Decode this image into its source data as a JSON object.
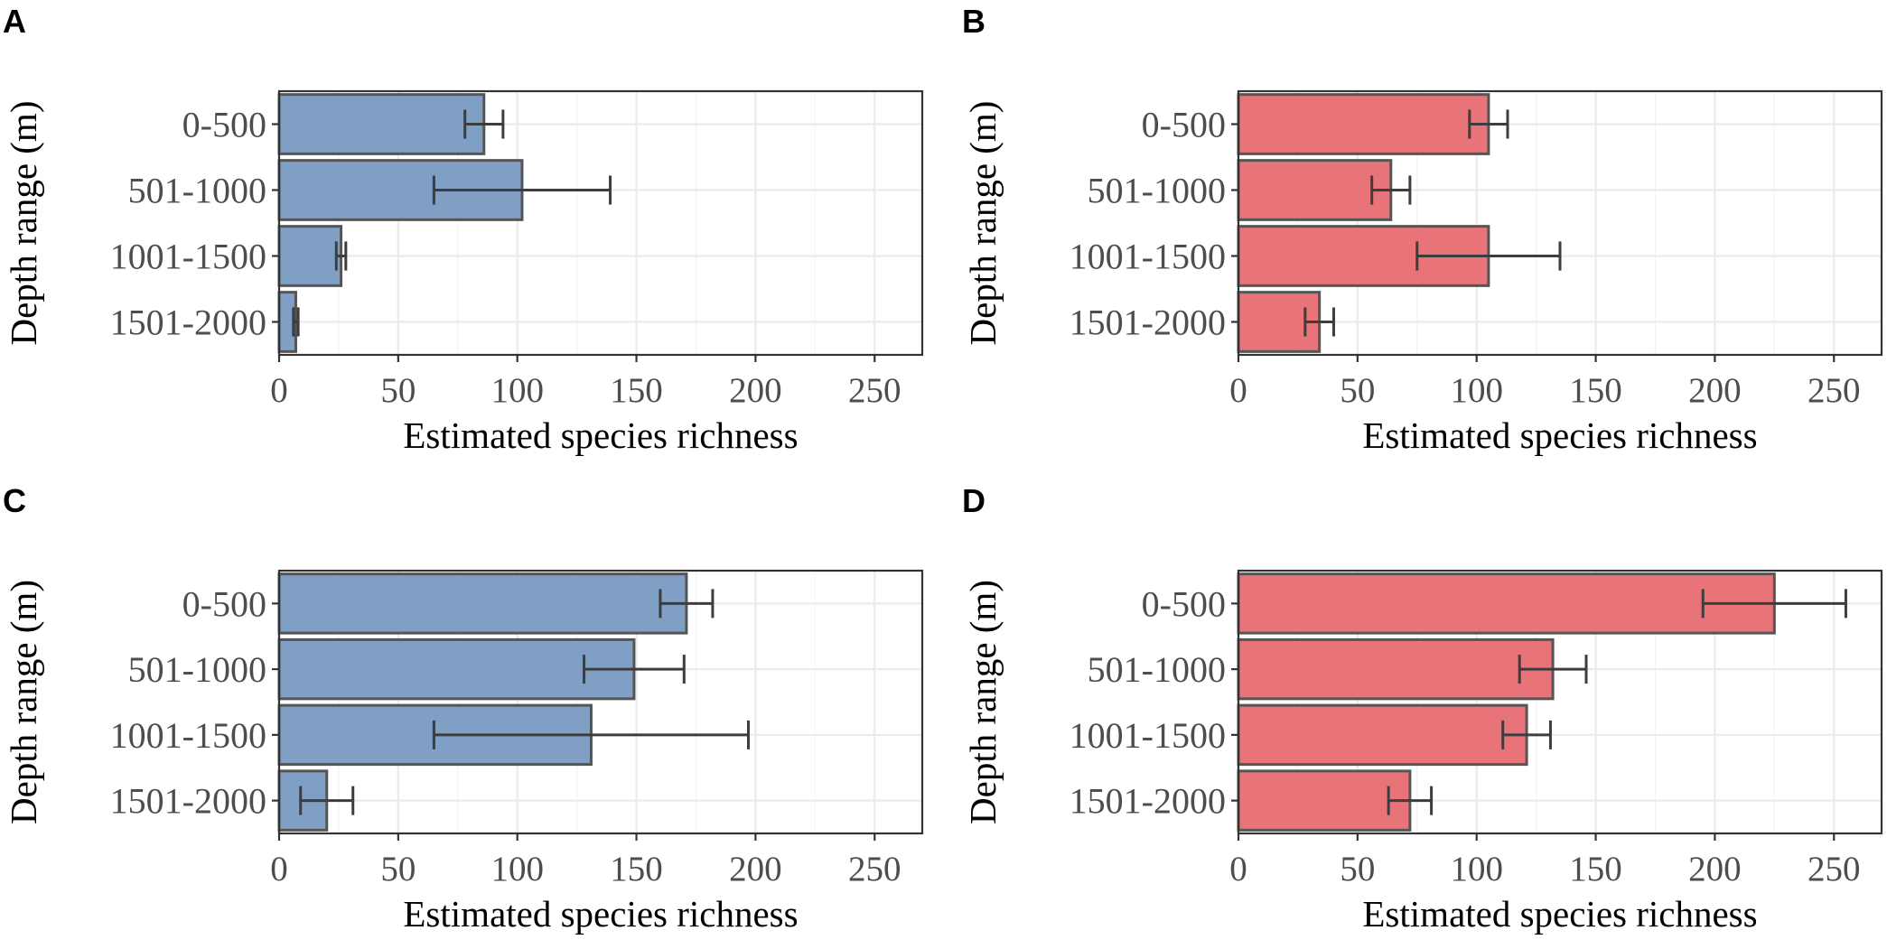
{
  "colors": {
    "blue": "#7f9fc4",
    "red": "#e87479"
  },
  "chart_data": [
    {
      "type": "bar",
      "orientation": "horizontal",
      "panel": "A",
      "categories": [
        "0-500",
        "501-1000",
        "1001-1500",
        "1501-2000"
      ],
      "values": [
        86,
        102,
        26,
        7
      ],
      "error_low": [
        78,
        65,
        24,
        6
      ],
      "error_high": [
        94,
        139,
        28,
        8
      ],
      "xlim": [
        0,
        270
      ],
      "xticks": [
        0,
        50,
        100,
        150,
        200,
        250
      ],
      "xlabel": "Estimated species richness",
      "ylabel": "Depth range (m)",
      "color": "blue"
    },
    {
      "type": "bar",
      "orientation": "horizontal",
      "panel": "B",
      "categories": [
        "0-500",
        "501-1000",
        "1001-1500",
        "1501-2000"
      ],
      "values": [
        105,
        64,
        105,
        34
      ],
      "error_low": [
        97,
        56,
        75,
        28
      ],
      "error_high": [
        113,
        72,
        135,
        40
      ],
      "xlim": [
        0,
        270
      ],
      "xticks": [
        0,
        50,
        100,
        150,
        200,
        250
      ],
      "xlabel": "Estimated species richness",
      "ylabel": "Depth range (m)",
      "color": "red"
    },
    {
      "type": "bar",
      "orientation": "horizontal",
      "panel": "C",
      "categories": [
        "0-500",
        "501-1000",
        "1001-1500",
        "1501-2000"
      ],
      "values": [
        171,
        149,
        131,
        20
      ],
      "error_low": [
        160,
        128,
        65,
        9
      ],
      "error_high": [
        182,
        170,
        197,
        31
      ],
      "xlim": [
        0,
        270
      ],
      "xticks": [
        0,
        50,
        100,
        150,
        200,
        250
      ],
      "xlabel": "Estimated species richness",
      "ylabel": "Depth range (m)",
      "color": "blue"
    },
    {
      "type": "bar",
      "orientation": "horizontal",
      "panel": "D",
      "categories": [
        "0-500",
        "501-1000",
        "1001-1500",
        "1501-2000"
      ],
      "values": [
        225,
        132,
        121,
        72
      ],
      "error_low": [
        195,
        118,
        111,
        63
      ],
      "error_high": [
        255,
        146,
        131,
        81
      ],
      "xlim": [
        0,
        270
      ],
      "xticks": [
        0,
        50,
        100,
        150,
        200,
        250
      ],
      "xlabel": "Estimated species richness",
      "ylabel": "Depth range (m)",
      "color": "red"
    }
  ]
}
